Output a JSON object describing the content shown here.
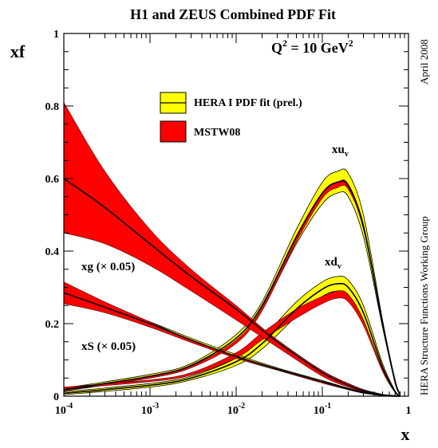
{
  "chart_data": {
    "type": "area",
    "title": "H1 and ZEUS Combined PDF Fit",
    "xlabel": "x",
    "ylabel": "xf",
    "annotation_q2": "Q",
    "annotation_q2_sup": "2",
    "annotation_q2_rest": " = 10 GeV",
    "annotation_q2_unit_sup": "2",
    "side_note_top": "April 2008",
    "side_note_bottom": "HERA Structure Functions Working Group",
    "x_scale": "log",
    "xlim": [
      0.0001,
      1
    ],
    "ylim": [
      0,
      1
    ],
    "grid": false,
    "legend_position": "upper-center",
    "x_ticks": [
      {
        "value": 0.0001,
        "base": "10",
        "exp": "-4"
      },
      {
        "value": 0.001,
        "base": "10",
        "exp": "-3"
      },
      {
        "value": 0.01,
        "base": "10",
        "exp": "-2"
      },
      {
        "value": 0.1,
        "base": "10",
        "exp": "-1"
      },
      {
        "value": 1,
        "base": "1",
        "exp": ""
      }
    ],
    "y_ticks": [
      {
        "value": 0,
        "label": "0"
      },
      {
        "value": 0.2,
        "label": "0.2"
      },
      {
        "value": 0.4,
        "label": "0.4"
      },
      {
        "value": 0.6,
        "label": "0.6"
      },
      {
        "value": 0.8,
        "label": "0.8"
      },
      {
        "value": 1,
        "label": "1"
      }
    ],
    "legend": [
      {
        "label": "HERA I PDF fit (prel.)",
        "color": "#ffff00",
        "style": "band-with-central-line"
      },
      {
        "label": "MSTW08",
        "color": "#ff0000",
        "style": "band"
      }
    ],
    "colors": {
      "hera": "#ffff00",
      "mstw": "#ff0000",
      "line": "#000000"
    },
    "curve_labels": [
      {
        "id": "xuv",
        "text": "xu",
        "sub": "v"
      },
      {
        "id": "xdv",
        "text": "xd",
        "sub": "v"
      },
      {
        "id": "xg",
        "text": "xg (× 0.05)"
      },
      {
        "id": "xS",
        "text": "xS (× 0.05)"
      }
    ],
    "series": [
      {
        "id": "xuv",
        "name": "xu_v",
        "x": [
          0.0001,
          0.001,
          0.003,
          0.01,
          0.02,
          0.05,
          0.1,
          0.15,
          0.2,
          0.3,
          0.5,
          0.7,
          0.8
        ],
        "hera_central": [
          0.018,
          0.055,
          0.085,
          0.16,
          0.25,
          0.44,
          0.56,
          0.59,
          0.58,
          0.47,
          0.2,
          0.04,
          0.005
        ],
        "hera_upper": [
          0.022,
          0.06,
          0.09,
          0.17,
          0.26,
          0.46,
          0.59,
          0.62,
          0.615,
          0.5,
          0.21,
          0.045,
          0.006
        ],
        "hera_lower": [
          0.014,
          0.05,
          0.08,
          0.15,
          0.24,
          0.42,
          0.53,
          0.56,
          0.55,
          0.44,
          0.19,
          0.035,
          0.004
        ],
        "mstw_upper": [
          0.02,
          0.055,
          0.083,
          0.155,
          0.245,
          0.44,
          0.56,
          0.59,
          0.585,
          0.47,
          0.2,
          0.04,
          0.005
        ],
        "mstw_lower": [
          0.015,
          0.05,
          0.078,
          0.145,
          0.235,
          0.425,
          0.545,
          0.575,
          0.57,
          0.46,
          0.195,
          0.038,
          0.004
        ]
      },
      {
        "id": "xdv",
        "name": "xd_v",
        "x": [
          0.0001,
          0.001,
          0.003,
          0.01,
          0.02,
          0.05,
          0.1,
          0.15,
          0.2,
          0.3,
          0.5,
          0.7,
          0.8
        ],
        "hera_central": [
          0.008,
          0.03,
          0.05,
          0.095,
          0.145,
          0.24,
          0.295,
          0.31,
          0.3,
          0.23,
          0.08,
          0.012,
          0.002
        ],
        "hera_upper": [
          0.012,
          0.035,
          0.055,
          0.105,
          0.16,
          0.26,
          0.315,
          0.33,
          0.32,
          0.25,
          0.09,
          0.015,
          0.003
        ],
        "hera_lower": [
          0.004,
          0.025,
          0.045,
          0.085,
          0.13,
          0.22,
          0.275,
          0.29,
          0.28,
          0.21,
          0.07,
          0.01,
          0.001
        ],
        "mstw_upper": [
          0.025,
          0.045,
          0.065,
          0.12,
          0.175,
          0.24,
          0.275,
          0.29,
          0.28,
          0.21,
          0.075,
          0.012,
          0.002
        ],
        "mstw_lower": [
          0.02,
          0.04,
          0.058,
          0.105,
          0.155,
          0.215,
          0.255,
          0.27,
          0.26,
          0.195,
          0.068,
          0.01,
          0.001
        ]
      },
      {
        "id": "xg",
        "name": "xg (× 0.05)",
        "x": [
          0.0001,
          0.0003,
          0.001,
          0.003,
          0.01,
          0.03,
          0.1,
          0.2,
          0.3,
          0.5,
          0.7,
          0.8
        ],
        "hera_central": [
          0.6,
          0.52,
          0.42,
          0.33,
          0.24,
          0.15,
          0.065,
          0.03,
          0.015,
          0.004,
          0.001,
          0.0
        ],
        "hera_upper": [
          0.67,
          0.56,
          0.44,
          0.34,
          0.245,
          0.155,
          0.07,
          0.035,
          0.018,
          0.005,
          0.001,
          0.0
        ],
        "hera_lower": [
          0.57,
          0.5,
          0.405,
          0.32,
          0.235,
          0.145,
          0.06,
          0.027,
          0.013,
          0.003,
          0.001,
          0.0
        ],
        "mstw_upper": [
          0.81,
          0.62,
          0.46,
          0.35,
          0.25,
          0.155,
          0.07,
          0.035,
          0.018,
          0.005,
          0.001,
          0.0
        ],
        "mstw_lower": [
          0.45,
          0.42,
          0.36,
          0.29,
          0.21,
          0.135,
          0.055,
          0.025,
          0.012,
          0.003,
          0.001,
          0.0
        ]
      },
      {
        "id": "xS",
        "name": "xS (× 0.05)",
        "x": [
          0.0001,
          0.0003,
          0.001,
          0.003,
          0.01,
          0.03,
          0.1,
          0.2,
          0.3,
          0.5,
          0.7,
          0.8
        ],
        "hera_central": [
          0.285,
          0.245,
          0.2,
          0.155,
          0.11,
          0.075,
          0.04,
          0.02,
          0.01,
          0.002,
          0.0,
          0.0
        ],
        "hera_upper": [
          0.295,
          0.25,
          0.205,
          0.16,
          0.115,
          0.078,
          0.043,
          0.022,
          0.011,
          0.003,
          0.0,
          0.0
        ],
        "hera_lower": [
          0.275,
          0.24,
          0.195,
          0.15,
          0.105,
          0.072,
          0.037,
          0.018,
          0.009,
          0.002,
          0.0,
          0.0
        ],
        "mstw_upper": [
          0.315,
          0.26,
          0.205,
          0.155,
          0.11,
          0.075,
          0.04,
          0.02,
          0.01,
          0.002,
          0.0,
          0.0
        ],
        "mstw_lower": [
          0.255,
          0.23,
          0.19,
          0.148,
          0.105,
          0.072,
          0.036,
          0.018,
          0.008,
          0.002,
          0.0,
          0.0
        ]
      }
    ]
  }
}
